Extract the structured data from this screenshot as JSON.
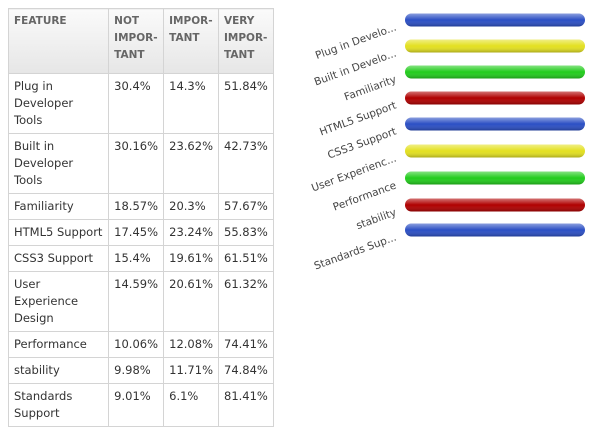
{
  "table": {
    "header": [
      [
        "FEATURE"
      ],
      [
        "NOT",
        "IMPOR-",
        "TANT"
      ],
      [
        "IMPOR-",
        "TANT"
      ],
      [
        "VERY",
        "IMPOR-",
        "TANT"
      ]
    ],
    "rows": [
      [
        "Plug in Developer Tools",
        "30.4%",
        "14.3%",
        "51.84%"
      ],
      [
        "Built in Developer Tools",
        "30.16%",
        "23.62%",
        "42.73%"
      ],
      [
        "Familiarity",
        "18.57%",
        "20.3%",
        "57.67%"
      ],
      [
        "HTML5 Support",
        "17.45%",
        "23.24%",
        "55.83%"
      ],
      [
        "CSS3 Support",
        "15.4%",
        "19.61%",
        "61.51%"
      ],
      [
        "User Experience Design",
        "14.59%",
        "20.61%",
        "61.32%"
      ],
      [
        "Performance",
        "10.06%",
        "12.08%",
        "74.41%"
      ],
      [
        "stability",
        "9.98%",
        "11.71%",
        "74.84%"
      ],
      [
        "Standards Support",
        "9.01%",
        "6.1%",
        "81.41%"
      ]
    ]
  },
  "chart": {
    "labels": [
      "Plug in Develo...",
      "Built in Develo...",
      "Familiarity",
      "HTML5 Support",
      "CSS3 Support",
      "User Experienc...",
      "Performance",
      "stability",
      "Standards Sup..."
    ],
    "colors": [
      "#2b4fc4",
      "#e3e020",
      "#22cc1c",
      "#b00000",
      "#2b4fc4",
      "#e3e020",
      "#22cc1c",
      "#b00000",
      "#2b4fc4"
    ]
  }
}
